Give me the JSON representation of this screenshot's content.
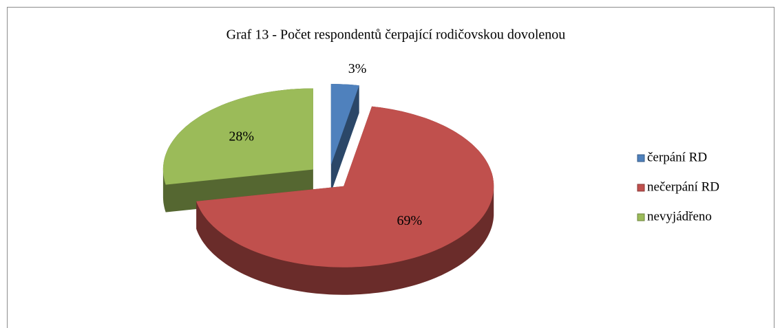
{
  "chart_data": {
    "type": "pie",
    "title": "Graf 13 - Počet respondentů čerpající rodičovskou dovolenou",
    "categories": [
      "čerpání RD",
      "nečerpání RD",
      "nevyjádřeno"
    ],
    "values": [
      3,
      69,
      28
    ],
    "value_labels": [
      "3%",
      "69%",
      "28%"
    ],
    "colors": [
      "#4f81bd",
      "#c0504d",
      "#9bbb59"
    ],
    "legend": "right"
  }
}
